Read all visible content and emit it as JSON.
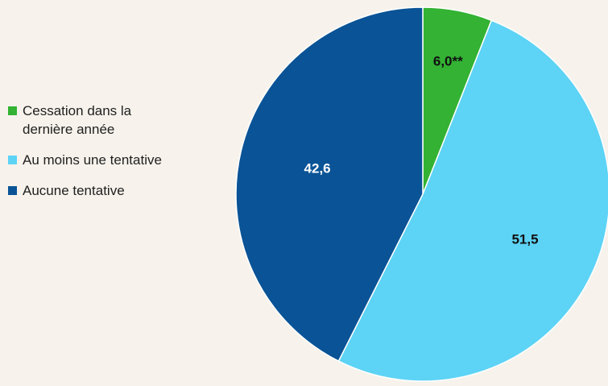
{
  "chart_data": {
    "type": "pie",
    "start_angle_deg": 0,
    "direction": "clockwise",
    "legend_position": "left",
    "slices": [
      {
        "label": "Cessation dans la dernière année",
        "value": 6.0,
        "display": "6,0**",
        "color": "#33b233",
        "label_style": "dark"
      },
      {
        "label": "Au moins une tentative",
        "value": 51.5,
        "display": "51,5",
        "color": "#5dd3f5",
        "label_style": "dark"
      },
      {
        "label": "Aucune tentative",
        "value": 42.6,
        "display": "42,6",
        "color": "#0a5396",
        "label_style": "light"
      }
    ]
  }
}
